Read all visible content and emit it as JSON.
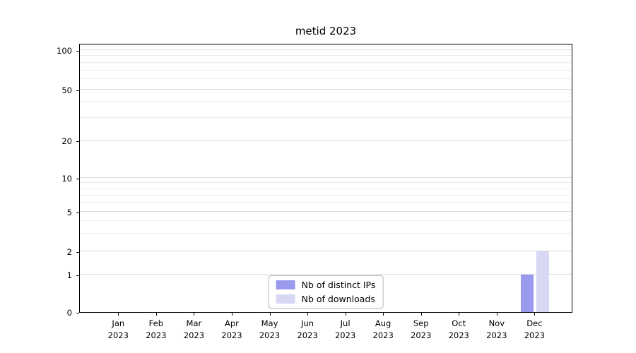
{
  "chart_data": {
    "type": "bar",
    "title": "metid 2023",
    "categories": [
      "Jan 2023",
      "Feb 2023",
      "Mar 2023",
      "Apr 2023",
      "May 2023",
      "Jun 2023",
      "Jul 2023",
      "Aug 2023",
      "Sep 2023",
      "Oct 2023",
      "Nov 2023",
      "Dec 2023"
    ],
    "series": [
      {
        "name": "Nb of distinct IPs",
        "color": "#9999ed",
        "values": [
          0,
          0,
          0,
          0,
          0,
          0,
          0,
          0,
          0,
          0,
          0,
          1
        ]
      },
      {
        "name": "Nb of downloads",
        "color": "#d8d8f5",
        "values": [
          0,
          0,
          0,
          0,
          0,
          0,
          0,
          0,
          0,
          0,
          0,
          2
        ]
      }
    ],
    "yscale": "symlog",
    "yticks": [
      0,
      1,
      2,
      5,
      10,
      20,
      50,
      100
    ],
    "y_minor_gridlines": [
      3,
      4,
      6,
      7,
      8,
      9,
      30,
      40,
      60,
      70,
      80,
      90
    ],
    "ylim": [
      0,
      110
    ],
    "grid": "horizontal",
    "legend_position": "lower center"
  }
}
